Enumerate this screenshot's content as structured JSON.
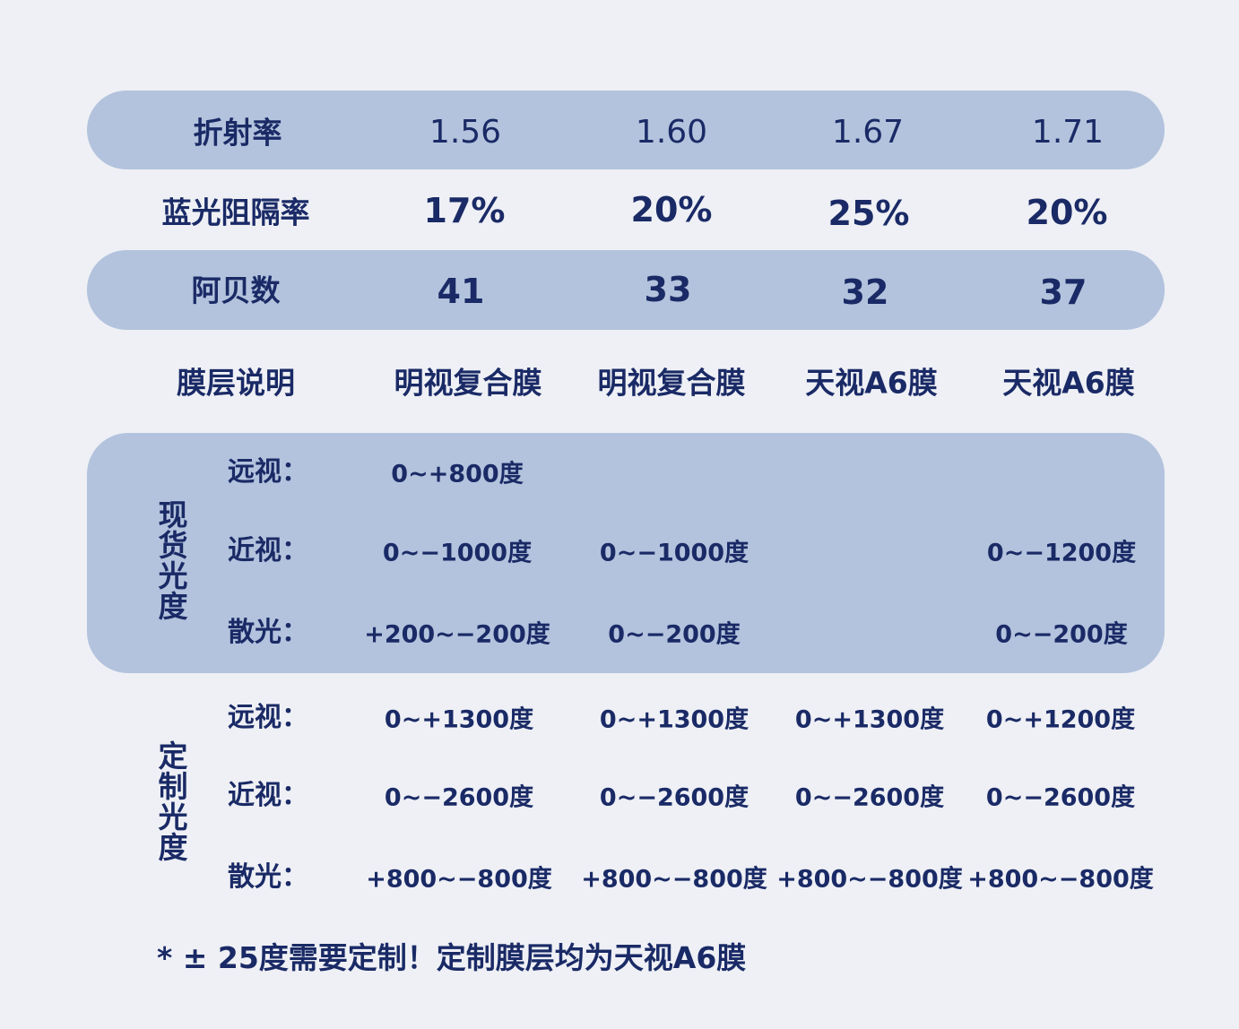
{
  "rows": {
    "refraction": {
      "label": "折射率",
      "values": [
        "1.56",
        "1.60",
        "1.67",
        "1.71"
      ]
    },
    "blue_block": {
      "label": "蓝光阻隔率",
      "values": [
        "17%",
        "20%",
        "25%",
        "20%"
      ]
    },
    "abbe": {
      "label": "阿贝数",
      "values": [
        "41",
        "33",
        "32",
        "37"
      ]
    },
    "coating": {
      "label": "膜层说明",
      "values": [
        "明视复合膜",
        "明视复合膜",
        "天视A6膜",
        "天视A6膜"
      ]
    }
  },
  "stock": {
    "label": "现货光度",
    "hyperopia": {
      "label": "远视：",
      "values": [
        "0~+800度",
        "",
        "",
        ""
      ]
    },
    "myopia": {
      "label": "近视：",
      "values": [
        "0~−1000度",
        "0~−1000度",
        "",
        "0~−1200度"
      ]
    },
    "astigmatism": {
      "label": "散光：",
      "values": [
        "+200~−200度",
        "0~−200度",
        "",
        "0~−200度"
      ]
    }
  },
  "custom": {
    "label": "定制光度",
    "hyperopia": {
      "label": "远视：",
      "values": [
        "0~+1300度",
        "0~+1300度",
        "0~+1300度",
        "0~+1200度"
      ]
    },
    "myopia": {
      "label": "近视：",
      "values": [
        "0~−2600度",
        "0~−2600度",
        "0~−2600度",
        "0~−2600度"
      ]
    },
    "astigmatism": {
      "label": "散光：",
      "values": [
        "+800~−800度",
        "+800~−800度",
        "+800~−800度",
        "+800~−800度"
      ]
    }
  },
  "footnote": "* ± 25度需要定制！定制膜层均为天视A6膜",
  "colors": {
    "band": "#b3c3dd",
    "background": "#eef0f5",
    "text": "#1a2a66"
  }
}
